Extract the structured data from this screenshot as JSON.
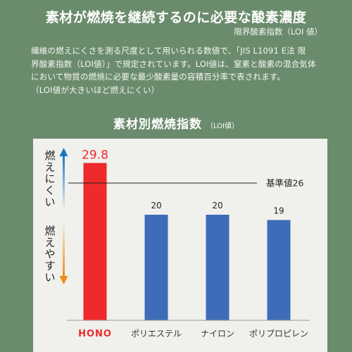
{
  "header": {
    "title": "素材が燃焼を継続するのに必要な酸素濃度",
    "subtitle": "限界酸素指数（LOI 値）"
  },
  "description": [
    "繊維の燃えにくさを測る尺度として用いられる数値で、「JIS L1091 E法 限",
    "界酸素指数（LOI値）」で規定されています。LOI値は、窒素と酸素の混合気体",
    "において物質の燃焼に必要な最少酸素量の容積百分率で表されます。",
    "（LOI値が大きいほど燃えにくい）"
  ],
  "chart_title": "素材別燃焼指数",
  "chart_unit": "（LOI値）",
  "colors": {
    "background": "#6b8c6c",
    "panel": "#f0f0ec",
    "highlight_bar": "#ee2a2a",
    "bar": "#3f6cb8",
    "arrow_up": "#1a76c4",
    "arrow_down": "#f08a10"
  },
  "chart_data": {
    "type": "bar",
    "categories": [
      "HONO",
      "ポリエステル",
      "ナイロン",
      "ポリプロピレン"
    ],
    "values": [
      29.8,
      20,
      20,
      19
    ],
    "value_labels": [
      "29.8",
      "20",
      "20",
      "19"
    ],
    "highlight_index": 0,
    "ylim": [
      0,
      32
    ],
    "grid": false,
    "reference_line": {
      "value": 26,
      "label": "基準値26"
    },
    "side_labels": {
      "top": "燃えにくい",
      "bottom": "燃えやすい"
    }
  }
}
